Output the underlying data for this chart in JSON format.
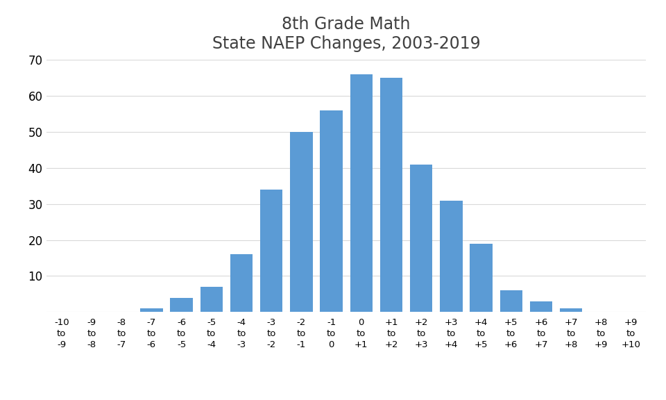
{
  "title": "8th Grade Math\nState NAEP Changes, 2003-2019",
  "bar_color": "#5b9bd5",
  "categories": [
    "-10\nto\n-9",
    "-9\nto\n-8",
    "-8\nto\n-7",
    "-7\nto\n-6",
    "-6\nto\n-5",
    "-5\nto\n-4",
    "-4\nto\n-3",
    "-3\nto\n-2",
    "-2\nto\n-1",
    "-1\nto\n0",
    "0\nto\n+1",
    "+1\nto\n+2",
    "+2\nto\n+3",
    "+3\nto\n+4",
    "+4\nto\n+5",
    "+5\nto\n+6",
    "+6\nto\n+7",
    "+7\nto\n+8",
    "+8\nto\n+9",
    "+9\nto\n+10"
  ],
  "values": [
    0,
    0,
    0,
    1,
    4,
    7,
    16,
    34,
    50,
    56,
    66,
    65,
    41,
    31,
    19,
    6,
    3,
    1,
    0,
    0
  ],
  "ylim": [
    0,
    70
  ],
  "yticks": [
    0,
    10,
    20,
    30,
    40,
    50,
    60,
    70
  ],
  "grid_color": "#d9d9d9",
  "background_color": "#ffffff",
  "title_fontsize": 17,
  "tick_fontsize": 9.5,
  "ytick_fontsize": 12
}
